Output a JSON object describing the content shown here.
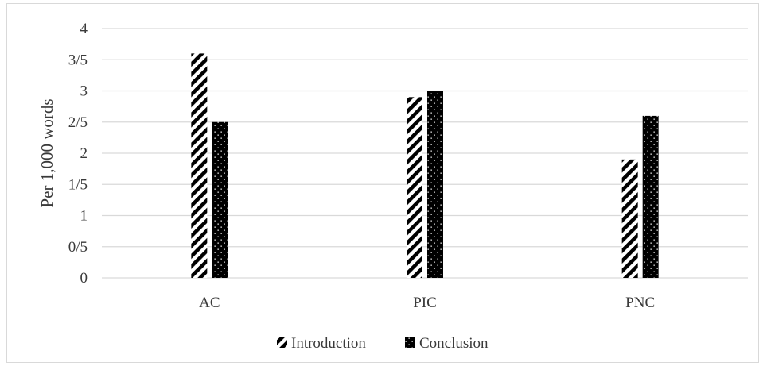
{
  "chart_data": {
    "type": "bar",
    "title": "",
    "xlabel": "",
    "ylabel": "Per 1,000 words",
    "categories": [
      "AC",
      "PIC",
      "PNC"
    ],
    "series": [
      {
        "name": "Introduction",
        "values": [
          3.6,
          2.9,
          1.9
        ],
        "pattern": "diagonal-stripes",
        "color": "#000000"
      },
      {
        "name": "Conclusion",
        "values": [
          2.5,
          3.0,
          2.6
        ],
        "pattern": "dotted-black",
        "color": "#000000"
      }
    ],
    "ylim": [
      0,
      4
    ],
    "yticks": [
      {
        "value": 0,
        "label": "0"
      },
      {
        "value": 0.5,
        "label": "0/5"
      },
      {
        "value": 1,
        "label": "1"
      },
      {
        "value": 1.5,
        "label": "1/5"
      },
      {
        "value": 2,
        "label": "2"
      },
      {
        "value": 2.5,
        "label": "2/5"
      },
      {
        "value": 3,
        "label": "3"
      },
      {
        "value": 3.5,
        "label": "3/5"
      },
      {
        "value": 4,
        "label": "4"
      }
    ],
    "grid": true,
    "legend_position": "bottom"
  }
}
